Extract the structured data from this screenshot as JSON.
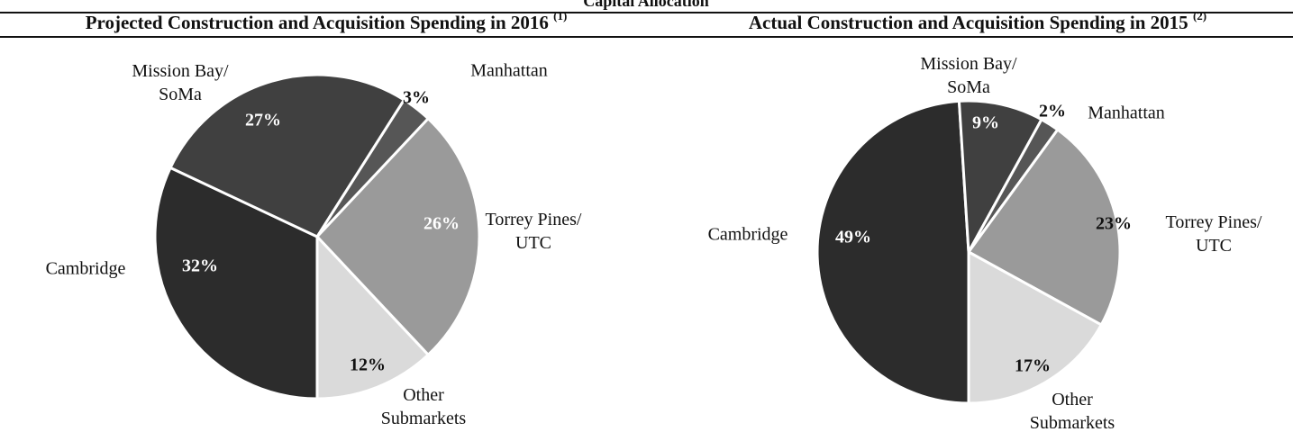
{
  "title": "Capital Allocation",
  "chart_data": [
    {
      "type": "pie",
      "title": "Projected Construction and Acquisition Spending in 2016",
      "footnote": "(1)",
      "categories": [
        "Cambridge",
        "Mission Bay/\nSoMa",
        "Manhattan",
        "Torrey Pines/\nUTC",
        "Other\nSubmarkets"
      ],
      "values": [
        32,
        27,
        3,
        26,
        12
      ],
      "value_labels": [
        "32%",
        "27%",
        "3%",
        "26%",
        "12%"
      ],
      "colors": [
        "#2c2c2c",
        "#404040",
        "#565656",
        "#9a9a9a",
        "#dadada"
      ]
    },
    {
      "type": "pie",
      "title": "Actual Construction and Acquisition Spending in 2015",
      "footnote": "(2)",
      "categories": [
        "Cambridge",
        "Mission Bay/\nSoMa",
        "Manhattan",
        "Torrey Pines/\nUTC",
        "Other\nSubmarkets"
      ],
      "values": [
        49,
        9,
        2,
        23,
        17
      ],
      "value_labels": [
        "49%",
        "9%",
        "2%",
        "23%",
        "17%"
      ],
      "colors": [
        "#2c2c2c",
        "#404040",
        "#565656",
        "#9a9a9a",
        "#dadada"
      ]
    }
  ]
}
